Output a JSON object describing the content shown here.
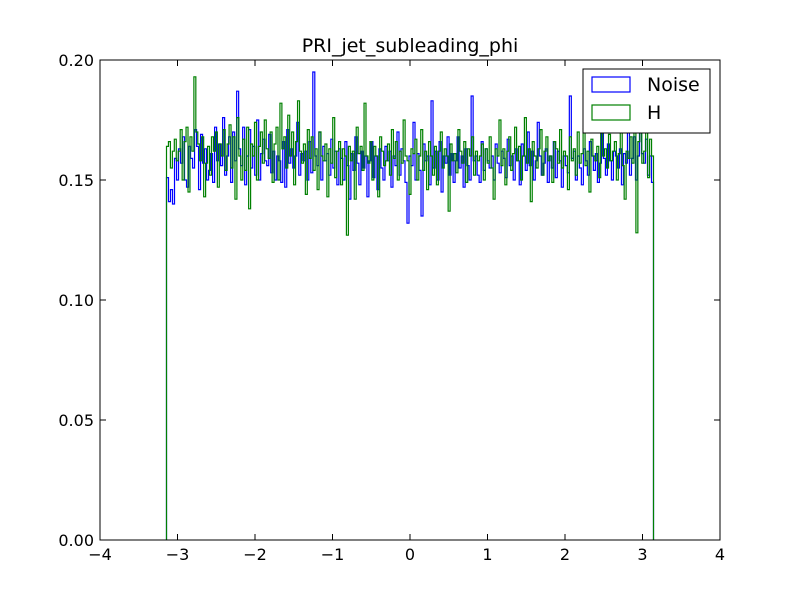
{
  "chart_data": {
    "type": "step-histogram",
    "title": "PRI_jet_subleading_phi",
    "xlabel": "",
    "ylabel": "",
    "xlim": [
      -4,
      4
    ],
    "ylim": [
      0,
      0.2
    ],
    "x_ticks": [
      -4,
      -3,
      -2,
      -1,
      0,
      1,
      2,
      3,
      4
    ],
    "x_tick_labels": [
      "−4",
      "−3",
      "−2",
      "−1",
      "0",
      "1",
      "2",
      "3",
      "4"
    ],
    "y_ticks": [
      0,
      0.05,
      0.1,
      0.15,
      0.2
    ],
    "y_tick_labels": [
      "0.00",
      "0.05",
      "0.10",
      "0.15",
      "0.20"
    ],
    "bin_range": [
      -3.142,
      3.142
    ],
    "legend": {
      "position": "top-right"
    },
    "series": [
      {
        "name": "Noise",
        "color": "#0000ff",
        "values": [
          0.151,
          0.141,
          0.146,
          0.14,
          0.159,
          0.15,
          0.163,
          0.157,
          0.168,
          0.15,
          0.147,
          0.164,
          0.159,
          0.155,
          0.171,
          0.164,
          0.146,
          0.169,
          0.157,
          0.163,
          0.15,
          0.154,
          0.161,
          0.149,
          0.172,
          0.158,
          0.165,
          0.156,
          0.176,
          0.152,
          0.16,
          0.168,
          0.149,
          0.17,
          0.158,
          0.187,
          0.163,
          0.156,
          0.172,
          0.148,
          0.16,
          0.171,
          0.155,
          0.164,
          0.152,
          0.175,
          0.15,
          0.161,
          0.167,
          0.158,
          0.156,
          0.169,
          0.153,
          0.162,
          0.15,
          0.16,
          0.158,
          0.149,
          0.166,
          0.147,
          0.171,
          0.157,
          0.163,
          0.155,
          0.16,
          0.174,
          0.152,
          0.161,
          0.158,
          0.162,
          0.15,
          0.166,
          0.153,
          0.195,
          0.16,
          0.156,
          0.17,
          0.15,
          0.164,
          0.158,
          0.161,
          0.152,
          0.167,
          0.155,
          0.162,
          0.148,
          0.163,
          0.159,
          0.15,
          0.166,
          0.156,
          0.142,
          0.161,
          0.154,
          0.168,
          0.157,
          0.148,
          0.162,
          0.155,
          0.16,
          0.143,
          0.158,
          0.166,
          0.151,
          0.16,
          0.146,
          0.163,
          0.155,
          0.15,
          0.164,
          0.158,
          0.162,
          0.147,
          0.16,
          0.156,
          0.17,
          0.152,
          0.163,
          0.158,
          0.149,
          0.132,
          0.16,
          0.156,
          0.174,
          0.15,
          0.161,
          0.154,
          0.135,
          0.165,
          0.158,
          0.16,
          0.148,
          0.183,
          0.155,
          0.162,
          0.15,
          0.166,
          0.145,
          0.16,
          0.157,
          0.168,
          0.152,
          0.161,
          0.149,
          0.158,
          0.168,
          0.155,
          0.16,
          0.147,
          0.163,
          0.156,
          0.15,
          0.185,
          0.158,
          0.16,
          0.152,
          0.149,
          0.166,
          0.154,
          0.163,
          0.158,
          0.155,
          0.16,
          0.15,
          0.165,
          0.157,
          0.153,
          0.162,
          0.159,
          0.151,
          0.167,
          0.156,
          0.16,
          0.15,
          0.163,
          0.158,
          0.148,
          0.165,
          0.16,
          0.154,
          0.17,
          0.156,
          0.162,
          0.15,
          0.158,
          0.174,
          0.16,
          0.152,
          0.157,
          0.163,
          0.149,
          0.16,
          0.155,
          0.166,
          0.151,
          0.162,
          0.158,
          0.147,
          0.16,
          0.156,
          0.153,
          0.185,
          0.159,
          0.162,
          0.15,
          0.16,
          0.155,
          0.148,
          0.163,
          0.158,
          0.152,
          0.166,
          0.16,
          0.154,
          0.161,
          0.149,
          0.157,
          0.171,
          0.159,
          0.152,
          0.165,
          0.158,
          0.15,
          0.162,
          0.16,
          0.155,
          0.163,
          0.148,
          0.161,
          0.157,
          0.17,
          0.152,
          0.159,
          0.168,
          0.15,
          0.16,
          0.176,
          0.161,
          0.157,
          0.167,
          0.152,
          0.16,
          0.149
        ]
      },
      {
        "name": "H",
        "color": "#008000",
        "values": [
          0.164,
          0.166,
          0.155,
          0.162,
          0.167,
          0.158,
          0.162,
          0.171,
          0.15,
          0.166,
          0.172,
          0.145,
          0.168,
          0.162,
          0.193,
          0.17,
          0.165,
          0.158,
          0.168,
          0.143,
          0.157,
          0.164,
          0.152,
          0.168,
          0.162,
          0.17,
          0.147,
          0.165,
          0.16,
          0.171,
          0.154,
          0.165,
          0.173,
          0.155,
          0.168,
          0.142,
          0.176,
          0.16,
          0.15,
          0.167,
          0.154,
          0.172,
          0.138,
          0.165,
          0.16,
          0.174,
          0.15,
          0.164,
          0.17,
          0.157,
          0.175,
          0.163,
          0.159,
          0.17,
          0.149,
          0.165,
          0.172,
          0.15,
          0.182,
          0.163,
          0.168,
          0.155,
          0.177,
          0.16,
          0.17,
          0.148,
          0.166,
          0.183,
          0.162,
          0.157,
          0.165,
          0.144,
          0.171,
          0.159,
          0.168,
          0.154,
          0.163,
          0.146,
          0.17,
          0.16,
          0.158,
          0.165,
          0.143,
          0.163,
          0.157,
          0.176,
          0.151,
          0.162,
          0.166,
          0.148,
          0.163,
          0.16,
          0.127,
          0.164,
          0.158,
          0.162,
          0.142,
          0.172,
          0.161,
          0.164,
          0.154,
          0.182,
          0.16,
          0.157,
          0.166,
          0.15,
          0.164,
          0.16,
          0.143,
          0.168,
          0.162,
          0.156,
          0.158,
          0.165,
          0.152,
          0.171,
          0.159,
          0.166,
          0.15,
          0.162,
          0.157,
          0.175,
          0.16,
          0.158,
          0.144,
          0.163,
          0.161,
          0.167,
          0.15,
          0.16,
          0.171,
          0.154,
          0.162,
          0.146,
          0.166,
          0.16,
          0.152,
          0.164,
          0.148,
          0.162,
          0.17,
          0.155,
          0.163,
          0.16,
          0.137,
          0.165,
          0.158,
          0.161,
          0.153,
          0.171,
          0.162,
          0.157,
          0.166,
          0.149,
          0.163,
          0.16,
          0.168,
          0.152,
          0.162,
          0.158,
          0.16,
          0.165,
          0.15,
          0.163,
          0.157,
          0.168,
          0.155,
          0.142,
          0.163,
          0.16,
          0.175,
          0.156,
          0.163,
          0.148,
          0.162,
          0.168,
          0.154,
          0.161,
          0.172,
          0.158,
          0.164,
          0.15,
          0.16,
          0.176,
          0.157,
          0.163,
          0.141,
          0.166,
          0.16,
          0.155,
          0.163,
          0.171,
          0.152,
          0.162,
          0.168,
          0.158,
          0.16,
          0.149,
          0.166,
          0.163,
          0.157,
          0.171,
          0.155,
          0.162,
          0.16,
          0.146,
          0.168,
          0.158,
          0.163,
          0.152,
          0.17,
          0.157,
          0.161,
          0.173,
          0.156,
          0.162,
          0.145,
          0.167,
          0.16,
          0.158,
          0.164,
          0.151,
          0.18,
          0.16,
          0.163,
          0.155,
          0.169,
          0.158,
          0.162,
          0.166,
          0.15,
          0.161,
          0.17,
          0.156,
          0.142,
          0.162,
          0.159,
          0.168,
          0.157,
          0.183,
          0.128,
          0.166,
          0.18,
          0.157,
          0.162,
          0.173,
          0.151,
          0.167,
          0.16
        ]
      }
    ]
  }
}
